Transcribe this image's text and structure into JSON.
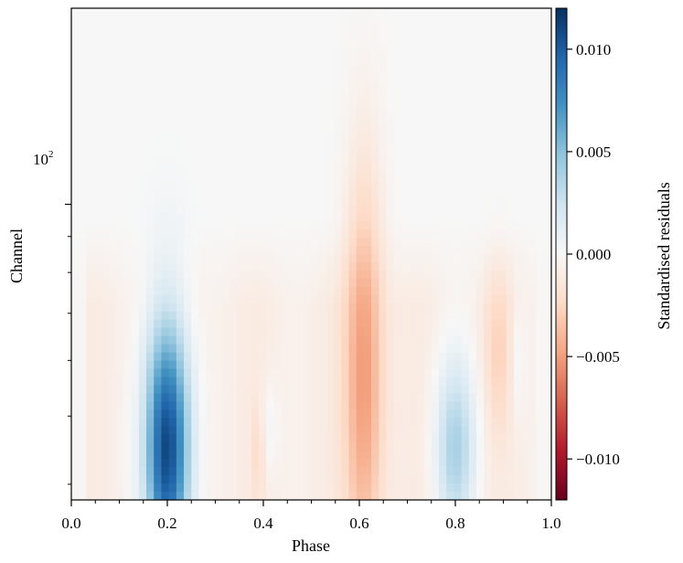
{
  "chart_data": {
    "type": "heatmap",
    "xlabel": "Phase",
    "ylabel": "Channel",
    "xlim": [
      0.0,
      1.0
    ],
    "x_ticks": [
      0.0,
      0.2,
      0.4,
      0.6,
      0.8,
      1.0
    ],
    "x_tick_labels": [
      "0.0",
      "0.2",
      "0.4",
      "0.6",
      "0.8",
      "1.0"
    ],
    "y_scale": "log",
    "ylim": [
      38,
      190
    ],
    "y_tick_label_base": "10",
    "y_tick_label_exp": "2",
    "colorbar": {
      "label": "Standardised residuals",
      "cmap": "RdBu",
      "vmin": -0.012,
      "vmax": 0.012,
      "ticks": [
        0.01,
        0.005,
        0.0,
        -0.005,
        -0.01
      ],
      "tick_labels": [
        "0.010",
        "0.005",
        "0.000",
        "−0.005",
        "−0.010"
      ]
    },
    "phase_bins": 64,
    "features": [
      {
        "name": "positive residual band",
        "phase": 0.2,
        "phase_width": 0.032,
        "peak_value": 0.012,
        "peak_channel": 45,
        "channel_range": [
          40,
          110
        ]
      },
      {
        "name": "negative residual band",
        "phase": 0.61,
        "phase_width": 0.028,
        "peak_value": -0.0045,
        "peak_channel": 58,
        "channel_range": [
          38,
          160
        ]
      },
      {
        "name": "positive residual band",
        "phase": 0.8,
        "phase_width": 0.03,
        "peak_value": 0.0045,
        "peak_channel": 45,
        "channel_range": [
          40,
          70
        ]
      },
      {
        "name": "weak negative background",
        "phase_range": [
          0.0,
          1.0
        ],
        "value": -0.001,
        "channel_range": [
          38,
          95
        ]
      }
    ]
  },
  "colors": {
    "dark_blue": "#053061",
    "mid_blue": "#4393c3",
    "light_blue": "#d1e5f0",
    "neutral": "#f7f7f7",
    "light_red": "#fddbc7",
    "mid_red": "#d6604d",
    "dark_red": "#67001f"
  }
}
